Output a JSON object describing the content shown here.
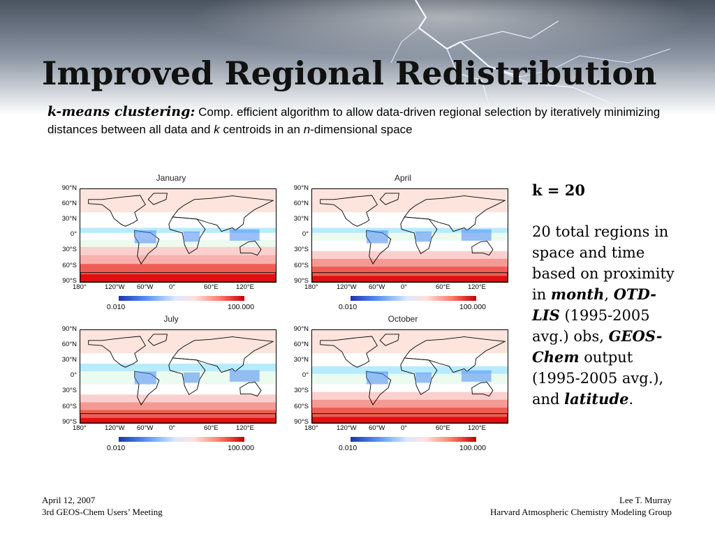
{
  "slide": {
    "title": "Improved Regional Redistribution",
    "subtitle": {
      "term": "k-means clustering:",
      "text_1": " Comp. efficient algorithm to allow data-driven regional selection by iteratively minimizing distances between all data and ",
      "k": "k",
      "text_2": " centroids in an ",
      "n": "n",
      "text_3": "-dimensional space"
    }
  },
  "maps": {
    "panels": [
      "January",
      "April",
      "July",
      "October"
    ],
    "lat_labels": [
      "90°N",
      "60°N",
      "30°N",
      "0°",
      "30°S",
      "60°S",
      "90°S"
    ],
    "lon_labels": [
      "180°",
      "120°W",
      "60°W",
      "0°",
      "60°E",
      "120°E"
    ],
    "colorbar": {
      "min": "0.010",
      "max": "100.000"
    },
    "colors": {
      "low": "#2233aa",
      "mid_low": "#4d8cf5",
      "mid": "#eaffef",
      "mid_high": "#ff7d6e",
      "high": "#c40000"
    },
    "bands": {
      "January": [
        {
          "from": 90,
          "to": 45,
          "color": "#fde4dd"
        },
        {
          "from": 45,
          "to": 15,
          "color": "#ffffff"
        },
        {
          "from": 15,
          "to": 5,
          "color": "#b7ebff"
        },
        {
          "from": 5,
          "to": -8,
          "color": "#ffffff"
        },
        {
          "from": -8,
          "to": -22,
          "color": "#ecfbef"
        },
        {
          "from": -22,
          "to": -38,
          "color": "#fad0ce"
        },
        {
          "from": -38,
          "to": -55,
          "color": "#f7b0ad"
        },
        {
          "from": -55,
          "to": -75,
          "color": "#ee5d55"
        },
        {
          "from": -75,
          "to": -90,
          "color": "#e00f0f"
        }
      ],
      "April": [
        {
          "from": 90,
          "to": 45,
          "color": "#fde4dd"
        },
        {
          "from": 45,
          "to": 15,
          "color": "#ffffff"
        },
        {
          "from": 15,
          "to": 5,
          "color": "#b7ebff"
        },
        {
          "from": 5,
          "to": -10,
          "color": "#ecfbef"
        },
        {
          "from": -10,
          "to": -30,
          "color": "#ffffff"
        },
        {
          "from": -30,
          "to": -45,
          "color": "#fad0ce"
        },
        {
          "from": -45,
          "to": -60,
          "color": "#f49a94"
        },
        {
          "from": -60,
          "to": -78,
          "color": "#ee5d55"
        },
        {
          "from": -78,
          "to": -90,
          "color": "#e00f0f"
        }
      ],
      "July": [
        {
          "from": 90,
          "to": 45,
          "color": "#fde4dd"
        },
        {
          "from": 45,
          "to": 25,
          "color": "#ffffff"
        },
        {
          "from": 25,
          "to": 10,
          "color": "#b7ebff"
        },
        {
          "from": 10,
          "to": -15,
          "color": "#ecfbef"
        },
        {
          "from": -15,
          "to": -35,
          "color": "#ffffff"
        },
        {
          "from": -35,
          "to": -50,
          "color": "#fad0ce"
        },
        {
          "from": -50,
          "to": -65,
          "color": "#f49a94"
        },
        {
          "from": -65,
          "to": -80,
          "color": "#ee5d55"
        },
        {
          "from": -80,
          "to": -90,
          "color": "#e00f0f"
        }
      ],
      "October": [
        {
          "from": 90,
          "to": 45,
          "color": "#fde4dd"
        },
        {
          "from": 45,
          "to": 20,
          "color": "#ffffff"
        },
        {
          "from": 20,
          "to": 5,
          "color": "#b7ebff"
        },
        {
          "from": 5,
          "to": -15,
          "color": "#ecfbef"
        },
        {
          "from": -15,
          "to": -30,
          "color": "#ffffff"
        },
        {
          "from": -30,
          "to": -45,
          "color": "#fad0ce"
        },
        {
          "from": -45,
          "to": -60,
          "color": "#f49a94"
        },
        {
          "from": -60,
          "to": -78,
          "color": "#ee5d55"
        },
        {
          "from": -78,
          "to": -90,
          "color": "#e00f0f"
        }
      ]
    }
  },
  "side": {
    "k_label": "k = 20",
    "t1": "20 total regions in space and time based on proximity in ",
    "month": "month",
    "t2": ", ",
    "otd": "OTD-LIS",
    "t3": " (1995-2005 avg.) obs, ",
    "geos": "GEOS-Chem",
    "t4": " output (1995-2005 avg.), and ",
    "latitude": "latitude",
    "t5": "."
  },
  "footer": {
    "date": "April 12, 2007",
    "meeting": "3rd GEOS-Chem Users’ Meeting",
    "author": "Lee T. Murray",
    "group": "Harvard Atmospheric Chemistry Modeling Group"
  }
}
